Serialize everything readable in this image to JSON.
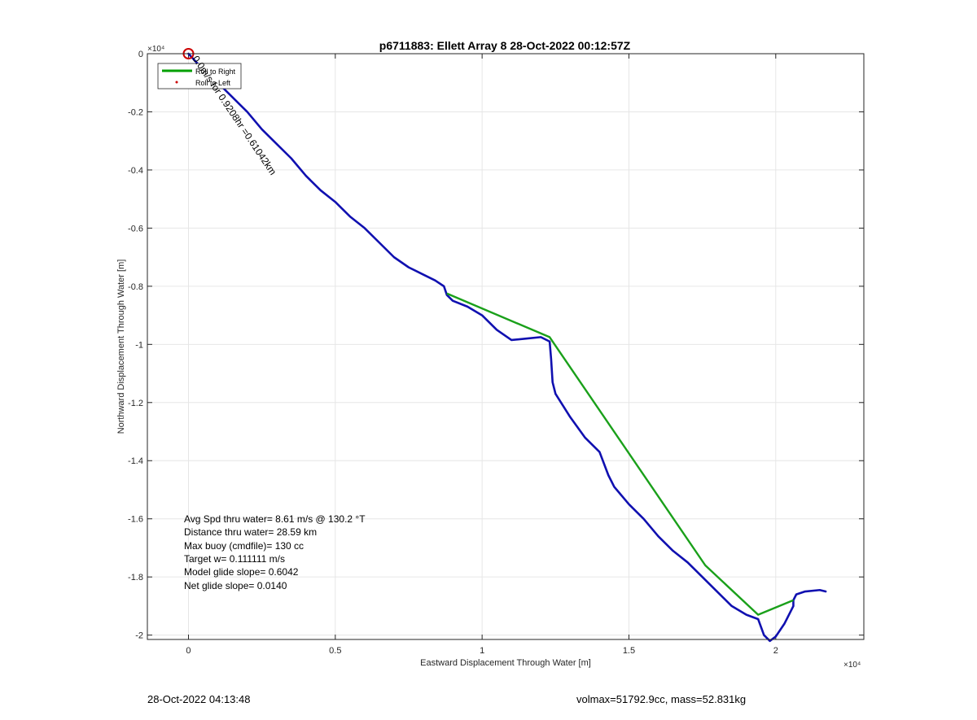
{
  "footer": {
    "timestamp": "28-Oct-2022 04:13:48",
    "volmax_mass": "volmax=51792.9cc, mass=52.831kg"
  },
  "chart_data": {
    "type": "line",
    "title": "p6711883: Ellett Array 8 28-Oct-2022 00:12:57Z",
    "xlabel": "Eastward Displacement Through Water [m]",
    "ylabel": "Northward Displacement Through Water [m]",
    "x_exponent_label": "×10⁴",
    "y_exponent_label": "×10⁴",
    "xlim": [
      -1400,
      23000
    ],
    "ylim": [
      -20150,
      0
    ],
    "x_ticks": [
      0,
      5000,
      10000,
      15000,
      20000
    ],
    "x_tick_labels": [
      "0",
      "0.5",
      "1",
      "1.5",
      "2"
    ],
    "y_ticks": [
      0,
      -2000,
      -4000,
      -6000,
      -8000,
      -10000,
      -12000,
      -14000,
      -16000,
      -18000,
      -20000
    ],
    "y_tick_labels": [
      "0",
      "-0.2",
      "-0.4",
      "-0.6",
      "-0.8",
      "-1",
      "-1.2",
      "-1.4",
      "-1.6",
      "-1.8",
      "-2"
    ],
    "grid": true,
    "legend": {
      "placement": "top-left",
      "entries": [
        {
          "label": "Roll to Right",
          "color": "#00a000",
          "marker": "line"
        },
        {
          "label": "Roll to Left",
          "color": "#cc0000",
          "marker": "dot"
        }
      ]
    },
    "series": [
      {
        "name": "Roll to Right",
        "color": "#1aa01a",
        "x": [
          8800,
          12300,
          17600,
          19400,
          20600
        ],
        "y": [
          -8250,
          -9750,
          -17600,
          -19300,
          -18800
        ]
      },
      {
        "color": "#1010b0",
        "x": [
          0,
          500,
          1000,
          1500,
          2000,
          2500,
          3000,
          3500,
          4000,
          4500,
          5000,
          5500,
          6000,
          6500,
          7000,
          7500,
          8000,
          8400,
          8700,
          8800,
          9000,
          9500,
          10000,
          10500,
          11000,
          11500,
          12000,
          12300,
          12350,
          12400,
          12500,
          13000,
          13500,
          14000,
          14300,
          14400,
          14500,
          15000,
          15500,
          16000,
          16500,
          17000,
          17500,
          18000,
          18500,
          19000,
          19400,
          19600,
          19800,
          20000,
          20300,
          20600,
          20600,
          20700,
          21000,
          21500,
          21700
        ],
        "y": [
          0,
          -550,
          -1000,
          -1500,
          -2000,
          -2600,
          -3100,
          -3600,
          -4200,
          -4700,
          -5100,
          -5600,
          -6000,
          -6500,
          -7000,
          -7350,
          -7600,
          -7800,
          -8000,
          -8300,
          -8500,
          -8700,
          -9000,
          -9500,
          -9850,
          -9800,
          -9750,
          -9900,
          -10500,
          -11300,
          -11700,
          -12500,
          -13200,
          -13700,
          -14500,
          -14700,
          -14900,
          -15500,
          -16000,
          -16600,
          -17100,
          -17500,
          -18000,
          -18500,
          -19000,
          -19300,
          -19450,
          -20000,
          -20200,
          -20050,
          -19600,
          -19000,
          -18800,
          -18600,
          -18500,
          -18450,
          -18500
        ]
      }
    ],
    "start_marker": {
      "x": 0,
      "y": 0,
      "color": "#cc0000"
    },
    "annotations": {
      "track_label": "0.0m/s for 0.9208hr =0.61042km",
      "stats": [
        "Avg Spd thru water=  8.61 m/s @ 130.2 °T",
        "Distance thru water= 28.59 km",
        "Max buoy (cmdfile)= 130 cc",
        "Target w= 0.111111 m/s",
        "Model glide slope= 0.6042",
        "Net glide slope= 0.0140"
      ]
    }
  }
}
